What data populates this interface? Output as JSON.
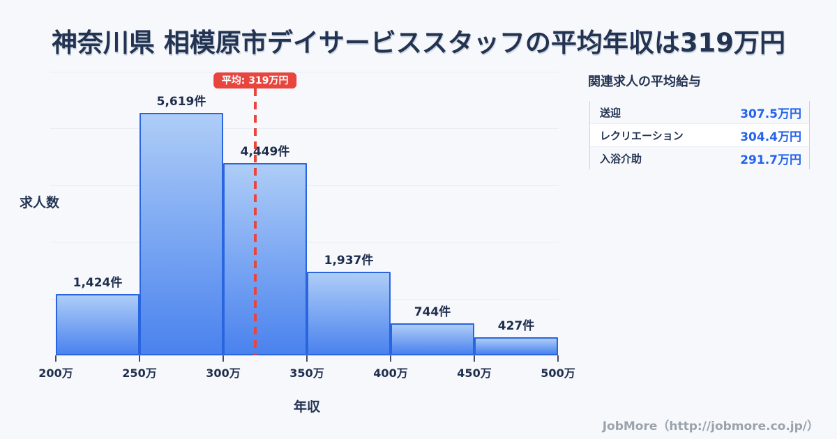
{
  "title": "神奈川県 相模原市デイサービススタッフの平均年収は319万円",
  "chart_data": {
    "type": "bar",
    "title": "神奈川県 相模原市デイサービススタッフの平均年収は319万円",
    "ylabel": "求人数",
    "xlabel": "年収",
    "bin_edges": [
      200,
      250,
      300,
      350,
      400,
      450,
      500
    ],
    "x_tick_labels": [
      "200万",
      "250万",
      "300万",
      "350万",
      "400万",
      "450万",
      "500万"
    ],
    "categories": [
      "200万-250万",
      "250万-300万",
      "300万-350万",
      "350万-400万",
      "400万-450万",
      "450万-500万"
    ],
    "values": [
      1424,
      5619,
      4449,
      1937,
      744,
      427
    ],
    "value_labels": [
      "1,424件",
      "5,619件",
      "4,449件",
      "1,937件",
      "744件",
      "427件"
    ],
    "unit": "件",
    "xlim": [
      200,
      500
    ],
    "ylim": [
      0,
      6570
    ],
    "grid": "horizontal",
    "legend": "none",
    "mean_line": {
      "value": 319,
      "label": "平均: 319万円"
    }
  },
  "panel": {
    "title": "関連求人の平均給与",
    "rows": [
      {
        "label": "送迎",
        "value": "307.5万円"
      },
      {
        "label": "レクリエーション",
        "value": "304.4万円"
      },
      {
        "label": "入浴介助",
        "value": "291.7万円"
      }
    ]
  },
  "footer": "JobMore（http://jobmore.co.jp/）",
  "colors": {
    "background": "#f6f8fb",
    "title_text": "#233352",
    "bar_border": "#2a65e0",
    "bar_fill_top": "#aecdf7",
    "bar_fill_bottom": "#4a82ee",
    "mean_red": "#e8453f",
    "value_blue": "#2563eb",
    "gridline": "#e8edf4"
  }
}
